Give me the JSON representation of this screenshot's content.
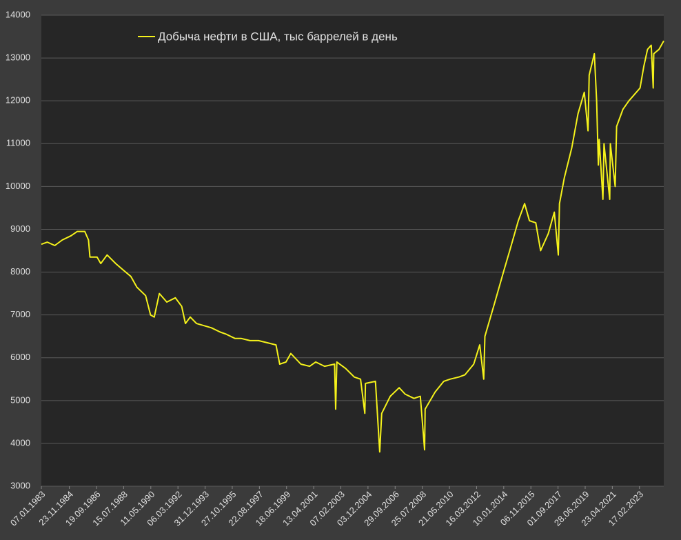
{
  "chart_data": {
    "type": "line",
    "x": [
      "07.01.1983",
      "03.06.1983",
      "02.12.1983",
      "01.06.1984",
      "04.01.1985",
      "07.06.1985",
      "06.12.1985",
      "07.03.1986",
      "11.04.1986",
      "03.10.1986",
      "02.01.1987",
      "05.06.1987",
      "01.01.1988",
      "01.07.1988",
      "06.01.1989",
      "02.06.1989",
      "05.01.1990",
      "04.05.1990",
      "03.08.1990",
      "07.12.1990",
      "07.06.1991",
      "03.01.1992",
      "05.06.1992",
      "04.09.1992",
      "01.01.1993",
      "04.06.1993",
      "03.12.1993",
      "03.06.1994",
      "06.01.1995",
      "02.06.1995",
      "05.01.1996",
      "07.06.1996",
      "03.01.1997",
      "01.08.1997",
      "06.03.1998",
      "02.10.1998",
      "01.01.1999",
      "04.06.1999",
      "01.10.1999",
      "02.06.2000",
      "05.01.2001",
      "01.06.2001",
      "04.01.2002",
      "06.09.2002",
      "04.10.2002",
      "01.11.2002",
      "06.06.2003",
      "02.01.2004",
      "04.06.2004",
      "17.09.2004",
      "01.10.2004",
      "03.06.2005",
      "16.09.2005",
      "04.11.2005",
      "02.06.2006",
      "05.01.2007",
      "01.06.2007",
      "04.01.2008",
      "06.06.2008",
      "19.09.2008",
      "03.10.2008",
      "05.06.2009",
      "01.01.2010",
      "04.06.2010",
      "07.01.2011",
      "03.06.2011",
      "06.01.2012",
      "01.06.2012",
      "07.09.2012",
      "05.10.2012",
      "07.06.2013",
      "03.01.2014",
      "06.06.2014",
      "02.01.2015",
      "05.06.2015",
      "02.10.2015",
      "04.03.2016",
      "01.07.2016",
      "06.01.2017",
      "02.06.2017",
      "08.09.2017",
      "06.10.2017",
      "02.02.2018",
      "03.08.2018",
      "04.01.2019",
      "07.06.2019",
      "06.09.2019",
      "04.10.2019",
      "07.02.2020",
      "03.04.2020",
      "15.05.2020",
      "05.06.2020",
      "04.09.2020",
      "02.10.2020",
      "19.02.2021",
      "05.03.2021",
      "02.07.2021",
      "06.08.2021",
      "07.01.2022",
      "03.06.2022",
      "02.12.2022",
      "03.03.2023",
      "02.06.2023",
      "01.09.2023",
      "01.12.2023",
      "19.01.2024",
      "02.02.2024",
      "07.06.2024",
      "04.10.2024"
    ],
    "series": [
      {
        "name": "Добыча нефти в США, тыс баррелей в день",
        "color": "#f5f21b",
        "values": [
          8650,
          8700,
          8620,
          8750,
          8850,
          8950,
          8950,
          8750,
          8350,
          8350,
          8200,
          8400,
          8200,
          8050,
          7900,
          7650,
          7450,
          7000,
          6950,
          7500,
          7300,
          7400,
          7200,
          6800,
          6950,
          6800,
          6750,
          6700,
          6600,
          6550,
          6450,
          6450,
          6400,
          6400,
          6350,
          6300,
          5850,
          5900,
          6100,
          5850,
          5800,
          5900,
          5800,
          5850,
          4800,
          5900,
          5750,
          5550,
          5500,
          4700,
          5400,
          5450,
          3800,
          4700,
          5100,
          5300,
          5150,
          5050,
          5100,
          3850,
          4800,
          5200,
          5450,
          5500,
          5550,
          5600,
          5850,
          6300,
          5500,
          6500,
          7300,
          8000,
          8500,
          9200,
          9600,
          9200,
          9150,
          8500,
          8900,
          9400,
          8400,
          9600,
          10200,
          10900,
          11700,
          12200,
          11300,
          12600,
          13100,
          12000,
          10500,
          11100,
          9700,
          11000,
          9700,
          11000,
          10000,
          11400,
          11800,
          12000,
          12200,
          12300,
          12800,
          13200,
          13300,
          12300,
          13100,
          13200,
          13400
        ]
      }
    ],
    "xticks": [
      "07.01.1983",
      "23.11.1984",
      "19.09.1986",
      "15.07.1988",
      "11.05.1990",
      "06.03.1992",
      "31.12.1993",
      "27.10.1995",
      "22.08.1997",
      "18.06.1999",
      "13.04.2001",
      "07.02.2003",
      "03.12.2004",
      "29.09.2006",
      "25.07.2008",
      "21.05.2010",
      "16.03.2012",
      "10.01.2014",
      "06.11.2015",
      "01.09.2017",
      "28.06.2019",
      "23.04.2021",
      "17.02.2023"
    ],
    "xlim": [
      "07.01.1983",
      "04.10.2024"
    ],
    "ylim": [
      3000,
      14000
    ],
    "yticks": [
      3000,
      4000,
      5000,
      6000,
      7000,
      8000,
      9000,
      10000,
      11000,
      12000,
      13000,
      14000
    ],
    "grid": true
  }
}
